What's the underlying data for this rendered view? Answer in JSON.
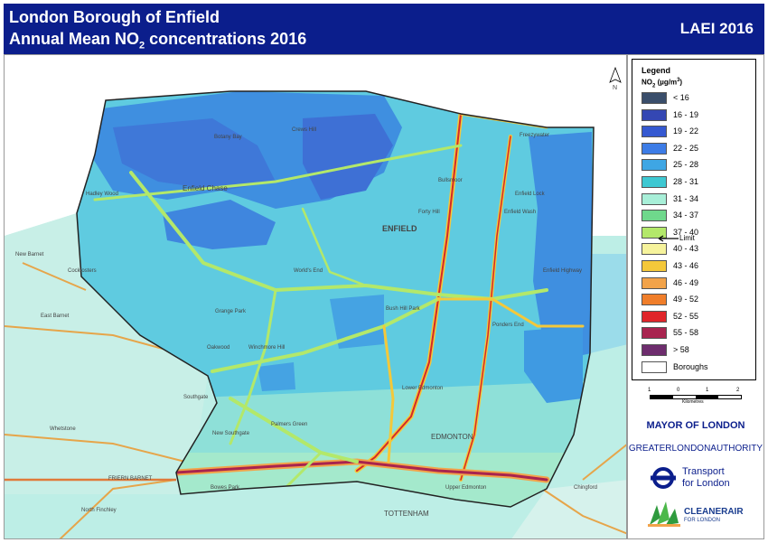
{
  "header": {
    "title_line1": "London Borough of Enfield",
    "title_line2_pre": "Annual Mean NO",
    "title_line2_sub": "2",
    "title_line2_post": " concentrations 2016",
    "brand": "LAEI 2016"
  },
  "legend": {
    "title": "Legend",
    "unit_pre": "NO",
    "unit_sub": "2",
    "unit_post": " (µg/m",
    "unit_sup": "3",
    "unit_end": ")",
    "items": [
      {
        "label": "< 16",
        "color": "#3a4e6b"
      },
      {
        "label": "16 - 19",
        "color": "#3447b3"
      },
      {
        "label": "19 - 22",
        "color": "#3559d1"
      },
      {
        "label": "22 - 25",
        "color": "#3d7ce6"
      },
      {
        "label": "25 - 28",
        "color": "#3ea6e4"
      },
      {
        "label": "28 - 31",
        "color": "#3ec8d2"
      },
      {
        "label": "31 - 34",
        "color": "#a8efd8"
      },
      {
        "label": "34 - 37",
        "color": "#6fd88c"
      },
      {
        "label": "37 - 40",
        "color": "#b3e86a"
      },
      {
        "label": "40 - 43",
        "color": "#f6f39c"
      },
      {
        "label": "43 - 46",
        "color": "#f4c83a"
      },
      {
        "label": "46 - 49",
        "color": "#f2a34a"
      },
      {
        "label": "49 - 52",
        "color": "#f07e2a"
      },
      {
        "label": "52 - 55",
        "color": "#e0252a"
      },
      {
        "label": "55 - 58",
        "color": "#a8244f"
      },
      {
        "label": "> 58",
        "color": "#6e2d6e"
      },
      {
        "label": "Boroughs",
        "color": "#ffffff"
      }
    ],
    "limit_label": "Limit"
  },
  "scale": {
    "ticks": [
      "1",
      "0",
      "1",
      "2"
    ],
    "unit": "Kilometres"
  },
  "north": "N",
  "logos": {
    "mayor": "MAYOR OF LONDON",
    "gla": "GREATERLONDONAUTHORITY",
    "tfl_line1": "Transport",
    "tfl_line2": "for London",
    "clean_title": "CLEANERAIR",
    "clean_sub": "FOR LONDON"
  },
  "places": [
    "Botany Bay",
    "Crews Hill",
    "Bullsmoor",
    "Freezywater",
    "Enfield Chase",
    "Hadley Wood",
    "Forty Hill",
    "ENFIELD",
    "Enfield Wash",
    "Enfield Lock",
    "Enfield Highway",
    "World's End",
    "Grange Park",
    "Oakwood",
    "Winchmore Hill",
    "Ponders End",
    "Lower Edmonton",
    "Palmers Green",
    "New Southgate",
    "EDMONTON",
    "Bowes Park",
    "Upper Edmonton",
    "TOTTENHAM",
    "New Barnet",
    "Cockfosters",
    "East Barnet",
    "Southgate",
    "Whetstone",
    "FRIERN BARNET",
    "North Finchley",
    "Bush Hill Park",
    "Chingford"
  ]
}
